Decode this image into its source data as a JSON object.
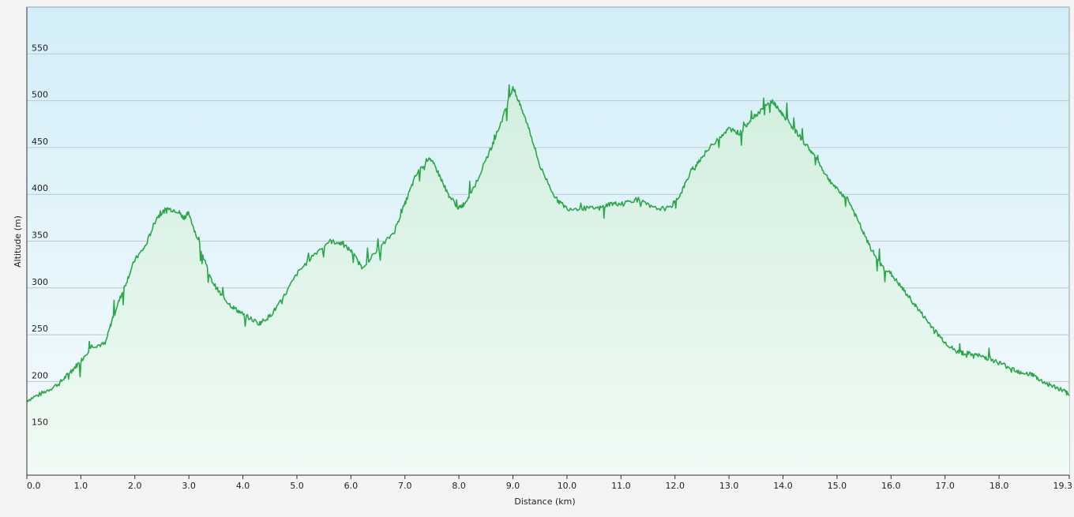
{
  "chart_data": {
    "type": "area",
    "xlabel": "Distance  (km)",
    "ylabel": "Altitude (m)",
    "xlim": [
      0,
      19.3
    ],
    "ylim": [
      100,
      600
    ],
    "x_ticks": [
      0.0,
      1.0,
      2.0,
      3.0,
      4.0,
      5.0,
      6.0,
      7.0,
      8.0,
      9.0,
      10.0,
      11.0,
      12.0,
      13.0,
      14.0,
      15.0,
      16.0,
      17.0,
      18.0,
      19.3
    ],
    "x_tick_labels": [
      "0.0",
      "1.0",
      "2.0",
      "3.0",
      "4.0",
      "5.0",
      "6.0",
      "7.0",
      "8.0",
      "9.0",
      "10.0",
      "11.0",
      "12.0",
      "13.0",
      "14.0",
      "15.0",
      "16.0",
      "17.0",
      "18.0",
      "19.3"
    ],
    "y_ticks": [
      150,
      200,
      250,
      300,
      350,
      400,
      450,
      500,
      550
    ],
    "y_tick_labels": [
      "150",
      "200",
      "250",
      "300",
      "350",
      "400",
      "450",
      "500",
      "550"
    ],
    "grid": "horizontal",
    "colors": {
      "line": "#2aa84a",
      "fill_top": "#d2eede",
      "fill_bottom": "#f0fbf5",
      "bg_top": "#d3eef8",
      "bg_bottom": "#f5fbfd",
      "grid": "#b9c9cf"
    },
    "series": [
      {
        "x": [
          0.0,
          0.3,
          0.6,
          0.8,
          1.0,
          1.2,
          1.45,
          1.6,
          1.8,
          2.0,
          2.2,
          2.4,
          2.6,
          2.8,
          2.9,
          3.0,
          3.2,
          3.4,
          3.6,
          3.8,
          4.0,
          4.3,
          4.5,
          4.7,
          5.0,
          5.3,
          5.6,
          5.8,
          6.0,
          6.2,
          6.5,
          6.8,
          7.0,
          7.2,
          7.45,
          7.6,
          7.8,
          8.0,
          8.1,
          8.3,
          8.6,
          8.8,
          9.0,
          9.1,
          9.3,
          9.5,
          9.8,
          10.0,
          10.3,
          10.6,
          10.8,
          11.0,
          11.3,
          11.6,
          11.9,
          12.1,
          12.3,
          12.5,
          12.8,
          13.0,
          13.2,
          13.4,
          13.6,
          13.8,
          13.9,
          14.0,
          14.2,
          14.4,
          14.6,
          14.8,
          15.0,
          15.2,
          15.4,
          15.6,
          15.8,
          16.0,
          16.2,
          16.4,
          16.6,
          16.8,
          17.0,
          17.2,
          17.4,
          17.6,
          17.8,
          18.0,
          18.2,
          18.4,
          18.6,
          18.8,
          19.0,
          19.2,
          19.3
        ],
        "y": [
          180,
          188,
          198,
          210,
          222,
          238,
          240,
          270,
          300,
          330,
          345,
          375,
          385,
          382,
          375,
          380,
          345,
          310,
          292,
          280,
          272,
          262,
          270,
          285,
          315,
          335,
          350,
          348,
          340,
          322,
          340,
          360,
          390,
          420,
          440,
          425,
          400,
          385,
          390,
          410,
          450,
          480,
          515,
          500,
          470,
          430,
          395,
          385,
          385,
          385,
          390,
          390,
          395,
          385,
          385,
          400,
          425,
          440,
          460,
          470,
          465,
          480,
          490,
          500,
          492,
          485,
          470,
          455,
          440,
          420,
          405,
          395,
          370,
          345,
          325,
          315,
          300,
          285,
          270,
          255,
          242,
          232,
          230,
          228,
          225,
          220,
          215,
          210,
          208,
          200,
          195,
          190,
          185
        ]
      }
    ]
  }
}
